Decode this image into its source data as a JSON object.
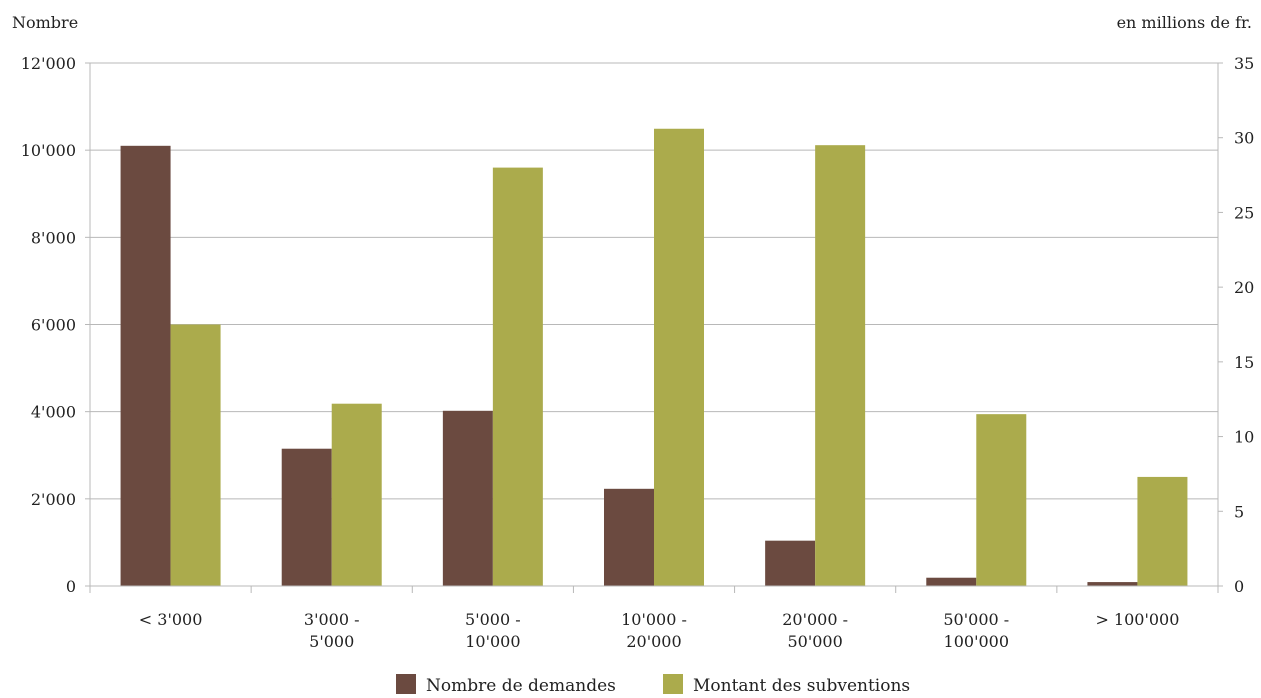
{
  "chart_data": {
    "type": "bar",
    "left_axis_title": "Nombre",
    "right_axis_title": "en millions de fr.",
    "categories": [
      [
        "< 3'000"
      ],
      [
        "3'000 -",
        "5'000"
      ],
      [
        "5'000 -",
        "10'000"
      ],
      [
        "10'000 -",
        "20'000"
      ],
      [
        "20'000 -",
        "50'000"
      ],
      [
        "50'000 -",
        "100'000"
      ],
      [
        "> 100'000"
      ]
    ],
    "left_ylim": [
      0,
      12000
    ],
    "left_ticks": [
      0,
      2000,
      4000,
      6000,
      8000,
      10000,
      12000
    ],
    "left_tick_labels": [
      "0",
      "2'000",
      "4'000",
      "6'000",
      "8'000",
      "10'000",
      "12'000"
    ],
    "right_ylim": [
      0,
      35
    ],
    "right_ticks": [
      0,
      5,
      10,
      15,
      20,
      25,
      30,
      35
    ],
    "right_tick_labels": [
      "0",
      "5",
      "10",
      "15",
      "20",
      "25",
      "30",
      "35"
    ],
    "grid": true,
    "legend_position": "bottom",
    "series": [
      {
        "name": "Nombre de demandes",
        "axis": "left",
        "color": "#6b4a40",
        "values": [
          10100,
          3150,
          4020,
          2230,
          1040,
          190,
          90
        ]
      },
      {
        "name": "Montant des subventions",
        "axis": "right",
        "color": "#abab4c",
        "values": [
          17.5,
          12.2,
          28.0,
          30.6,
          29.5,
          11.5,
          7.3
        ]
      }
    ]
  }
}
